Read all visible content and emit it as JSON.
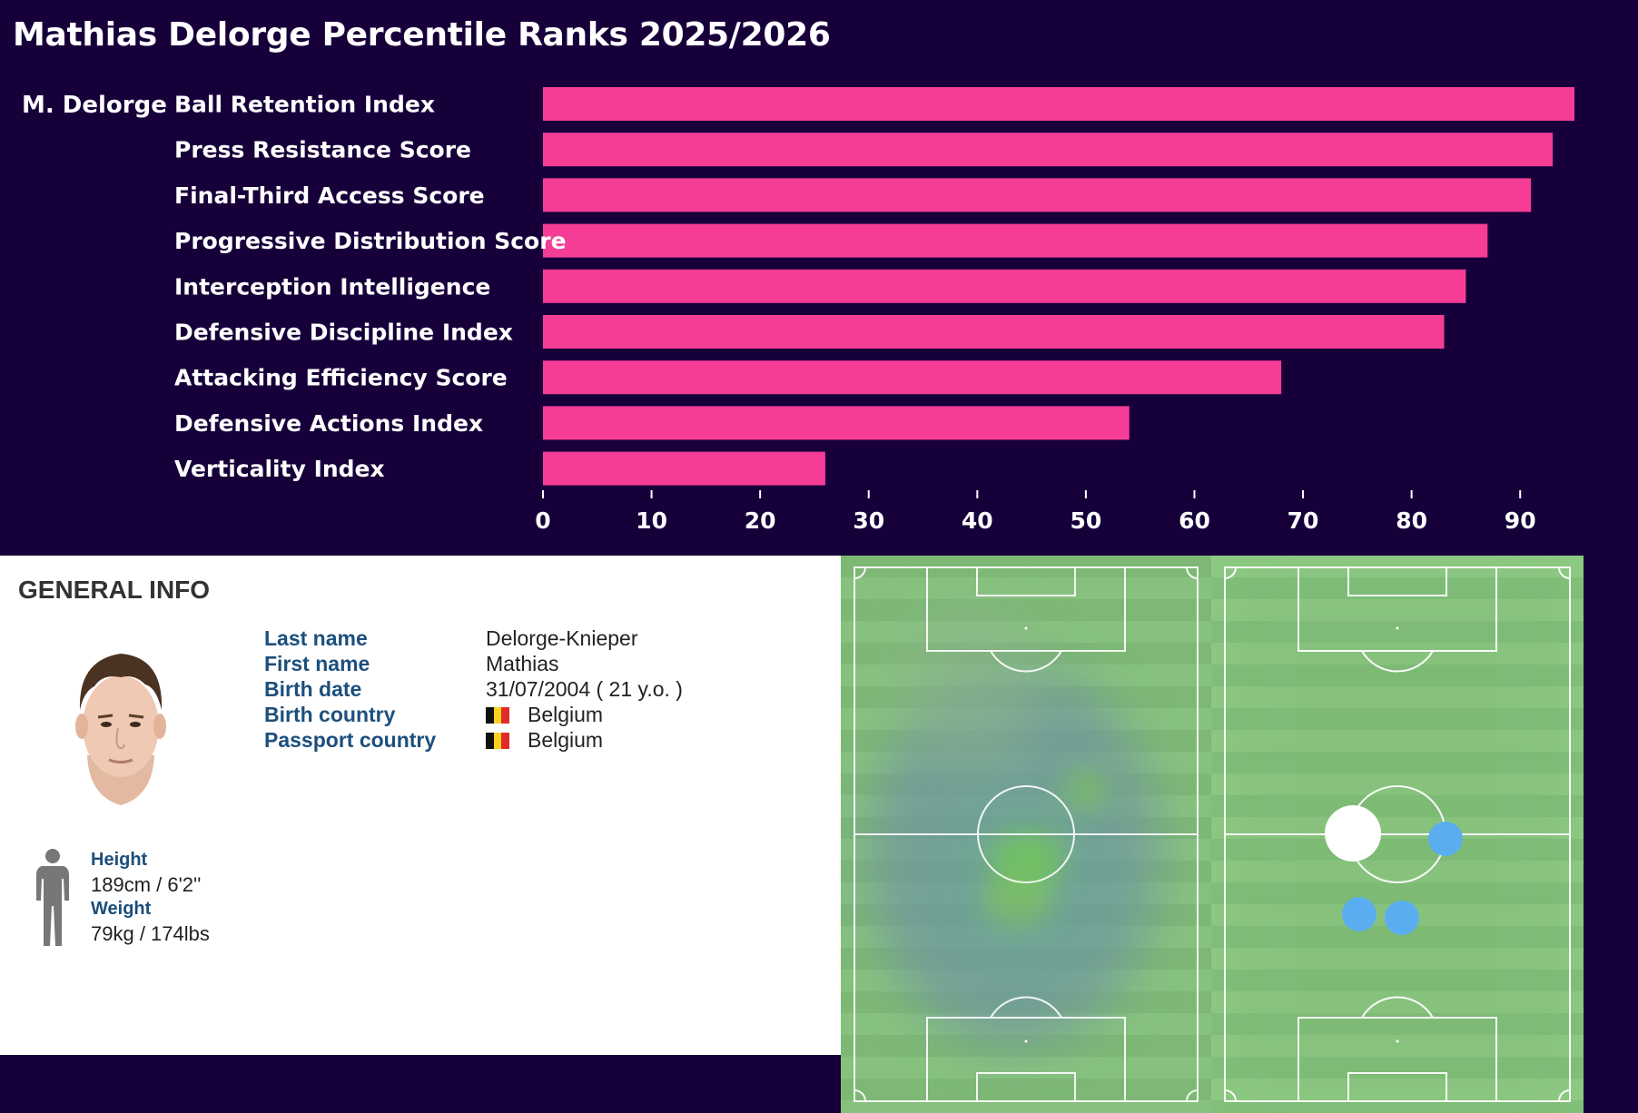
{
  "title": "Mathias Delorge Percentile Ranks 2025/2026",
  "chart_data": {
    "type": "bar",
    "orientation": "horizontal",
    "title": "Mathias Delorge Percentile Ranks 2025/2026",
    "player_label": "M. Delorge",
    "categories": [
      "Ball Retention Index",
      "Press Resistance Score",
      "Final-Third Access Score",
      "Progressive Distribution Score",
      "Interception Intelligence",
      "Defensive Discipline Index",
      "Attacking Efficiency Score",
      "Defensive Actions Index",
      "Verticality Index"
    ],
    "values": [
      95,
      93,
      91,
      87,
      85,
      83,
      68,
      54,
      26
    ],
    "xlim": [
      0,
      95
    ],
    "ticks": [
      0,
      10,
      20,
      30,
      40,
      50,
      60,
      70,
      80,
      90
    ],
    "bar_color": "#f53d96",
    "background": "#17003a",
    "xlabel": "",
    "ylabel": ""
  },
  "general_info": {
    "heading": "GENERAL INFO",
    "rows": [
      {
        "label": "Last name",
        "value": "Delorge-Knieper"
      },
      {
        "label": "First name",
        "value": "Mathias"
      },
      {
        "label": "Birth date",
        "value": "31/07/2004 ( 21 y.o. )"
      },
      {
        "label": "Birth country",
        "value": "Belgium"
      },
      {
        "label": "Passport country",
        "value": "Belgium"
      }
    ],
    "height_label": "Height",
    "height_value": "189cm / 6'2''",
    "weight_label": "Weight",
    "weight_value": "79kg / 174lbs"
  },
  "colors": {
    "pitch_green": "#86c27e",
    "label_blue": "#1c4f7c",
    "dot_blue": "#5aaef0"
  }
}
